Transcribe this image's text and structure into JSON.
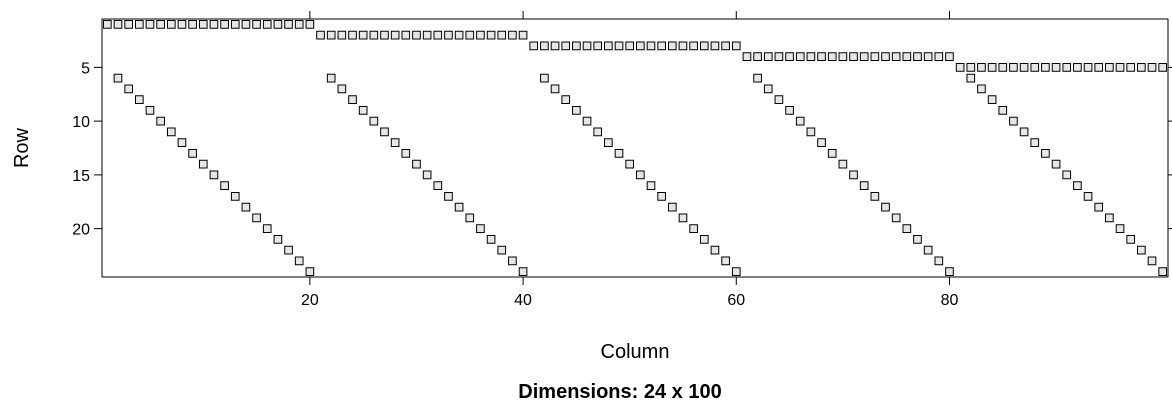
{
  "chart_data": {
    "type": "heatmap",
    "title": "",
    "subtitle": "Dimensions: 24 x 100",
    "xlabel": "Column",
    "ylabel": "Row",
    "nrow": 24,
    "ncol": 100,
    "xlim": [
      0.5,
      100.5
    ],
    "ylim": [
      24.5,
      0.5
    ],
    "xticks": [
      20,
      40,
      60,
      80
    ],
    "yticks": [
      5,
      10,
      15,
      20
    ],
    "cell_color": "#e6e6e6",
    "border_color": "#000000",
    "nonzero_pattern": [
      {
        "row": 1,
        "col_from": 1,
        "col_to": 20
      },
      {
        "row": 2,
        "col_from": 21,
        "col_to": 40
      },
      {
        "row": 3,
        "col_from": 41,
        "col_to": 60
      },
      {
        "row": 4,
        "col_from": 61,
        "col_to": 80
      },
      {
        "row": 5,
        "col_from": 81,
        "col_to": 100
      },
      {
        "diagonal": true,
        "row_from": 6,
        "row_to": 24,
        "col_start": 2,
        "period": 20
      }
    ]
  }
}
